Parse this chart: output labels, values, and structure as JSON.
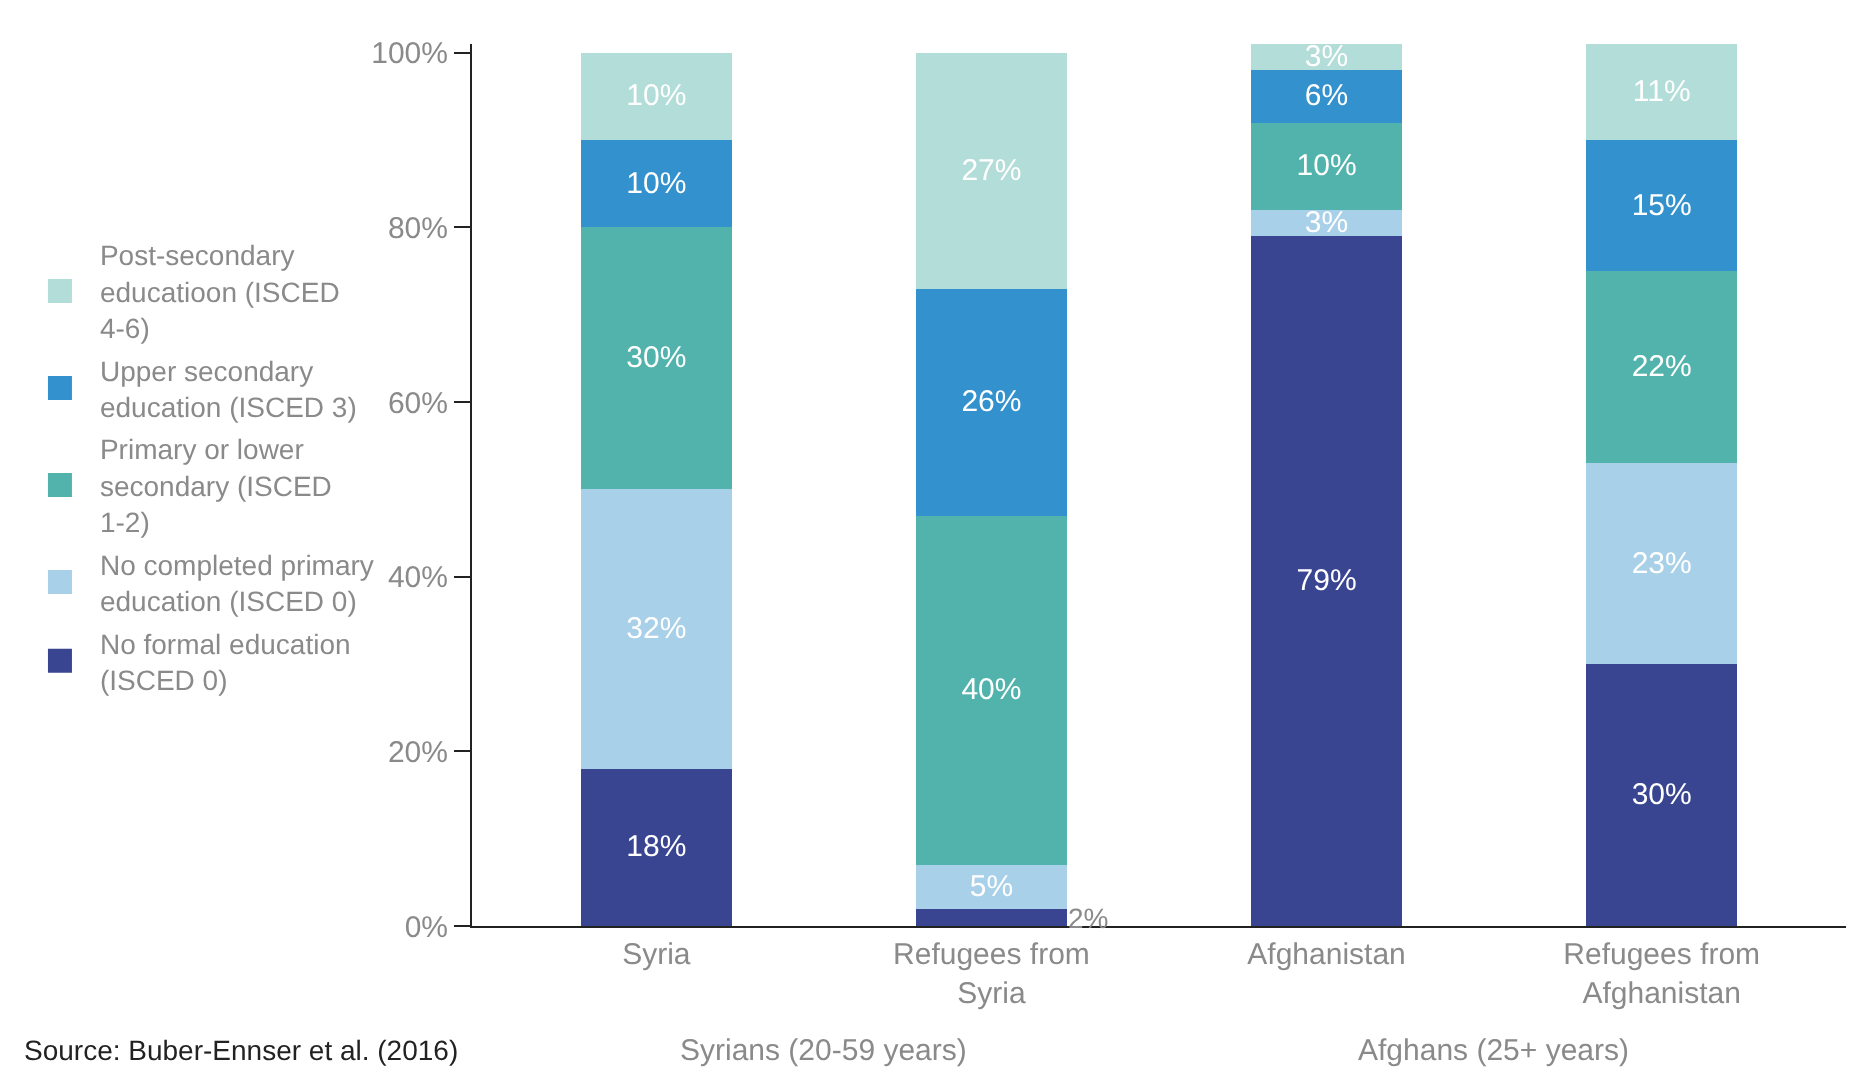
{
  "chart_data": {
    "type": "bar",
    "stacked": true,
    "categories": [
      "Syria",
      "Refugees from Syria",
      "Afghanistan",
      "Refugees from Afghanistan"
    ],
    "series": [
      {
        "name": "No formal education (ISCED 0)",
        "color": "#394591",
        "values": [
          18,
          2,
          79,
          30
        ],
        "value_labels": [
          "18%",
          "2%",
          "79%",
          "30%"
        ]
      },
      {
        "name": "No completed primary education (ISCED 0)",
        "color": "#a8d0e8",
        "values": [
          32,
          5,
          3,
          23
        ],
        "value_labels": [
          "32%",
          "5%",
          "3%",
          "23%"
        ]
      },
      {
        "name": "Primary or lower secondary (ISCED 1-2)",
        "color": "#52b3ad",
        "values": [
          30,
          40,
          10,
          22
        ],
        "value_labels": [
          "30%",
          "40%",
          "10%",
          "22%"
        ]
      },
      {
        "name": "Upper secondary education (ISCED 3)",
        "color": "#3391cd",
        "values": [
          10,
          26,
          6,
          15
        ],
        "value_labels": [
          "10%",
          "26%",
          "6%",
          "15%"
        ]
      },
      {
        "name": "Post-secondary educatioon (ISCED 4-6)",
        "color": "#b3ddd8",
        "values": [
          10,
          27,
          3,
          11
        ],
        "value_labels": [
          "10%",
          "27%",
          "3%",
          "11%"
        ]
      }
    ],
    "ylim": [
      0,
      101
    ],
    "yticks": [
      {
        "value": 0,
        "label": "0%"
      },
      {
        "value": 20,
        "label": "20%"
      },
      {
        "value": 40,
        "label": "40%"
      },
      {
        "value": 60,
        "label": "60%"
      },
      {
        "value": 80,
        "label": "80%"
      },
      {
        "value": 100,
        "label": "100%"
      }
    ],
    "legend": "left",
    "annotations": [
      "Syrians (20-59 years)",
      "Afghans (25+ years)",
      "Source: Buber-Ennser et al. (2016)"
    ]
  }
}
